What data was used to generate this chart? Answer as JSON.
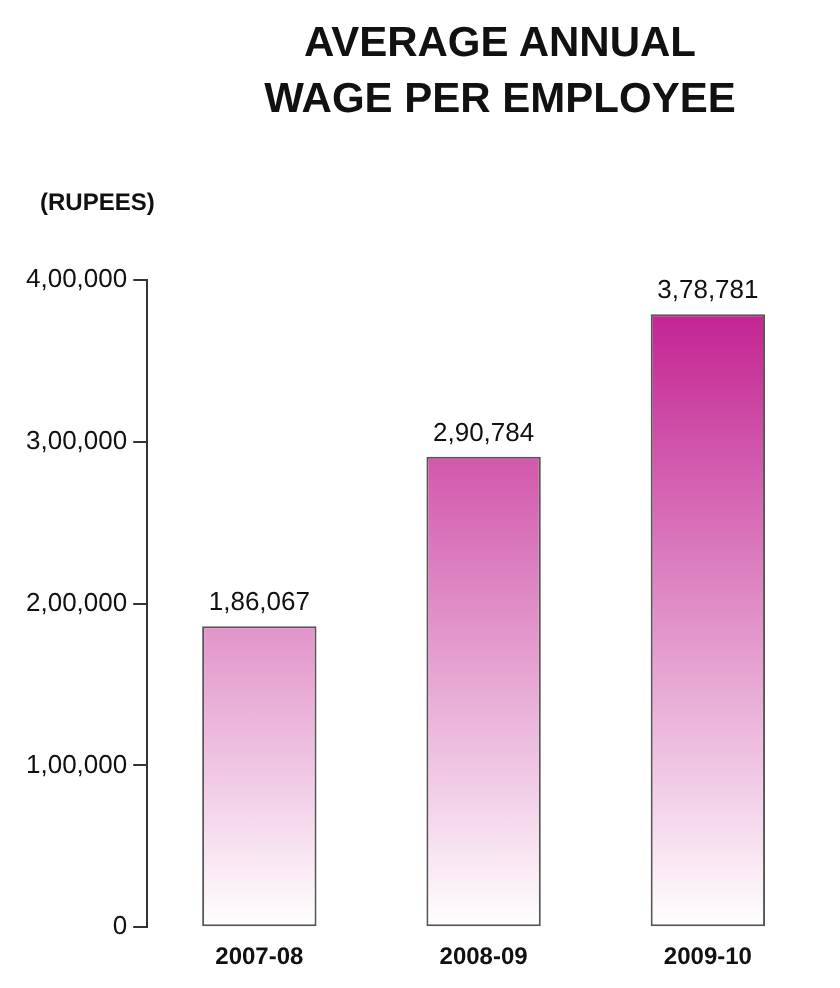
{
  "chart_data": {
    "type": "bar",
    "title": "AVERAGE ANNUAL WAGE PER EMPLOYEE",
    "ylabel": "(RUPEES)",
    "categories": [
      "2007-08",
      "2008-09",
      "2009-10"
    ],
    "values": [
      186067,
      290784,
      378781
    ],
    "value_labels": [
      "1,86,067",
      "2,90,784",
      "3,78,781"
    ],
    "color": "#c0188c",
    "ylim": [
      0,
      400000
    ],
    "yticks": [
      {
        "value": 0,
        "label": "0"
      },
      {
        "value": 100000,
        "label": "1,00,000"
      },
      {
        "value": 200000,
        "label": "2,00,000"
      },
      {
        "value": 300000,
        "label": "3,00,000"
      },
      {
        "value": 400000,
        "label": "4,00,000"
      }
    ],
    "grid": false,
    "legend": false
  }
}
